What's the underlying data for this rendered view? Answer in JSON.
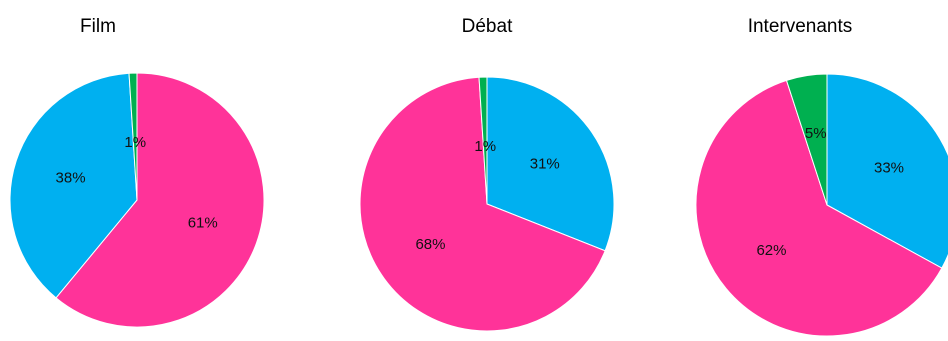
{
  "chart_data": [
    {
      "type": "pie",
      "title": "Film",
      "slices": [
        {
          "value": 61,
          "label": "61%",
          "color": "#FF3399"
        },
        {
          "value": 38,
          "label": "38%",
          "color": "#00B0F0"
        },
        {
          "value": 1,
          "label": "1%",
          "color": "#00B050"
        }
      ]
    },
    {
      "type": "pie",
      "title": "Débat",
      "slices": [
        {
          "value": 31,
          "label": "31%",
          "color": "#00B0F0"
        },
        {
          "value": 68,
          "label": "68%",
          "color": "#FF3399"
        },
        {
          "value": 1,
          "label": "1%",
          "color": "#00B050"
        }
      ]
    },
    {
      "type": "pie",
      "title": "Intervenants",
      "slices": [
        {
          "value": 33,
          "label": "33%",
          "color": "#00B0F0"
        },
        {
          "value": 62,
          "label": "62%",
          "color": "#FF3399"
        },
        {
          "value": 5,
          "label": "5%",
          "color": "#00B050"
        }
      ]
    }
  ]
}
